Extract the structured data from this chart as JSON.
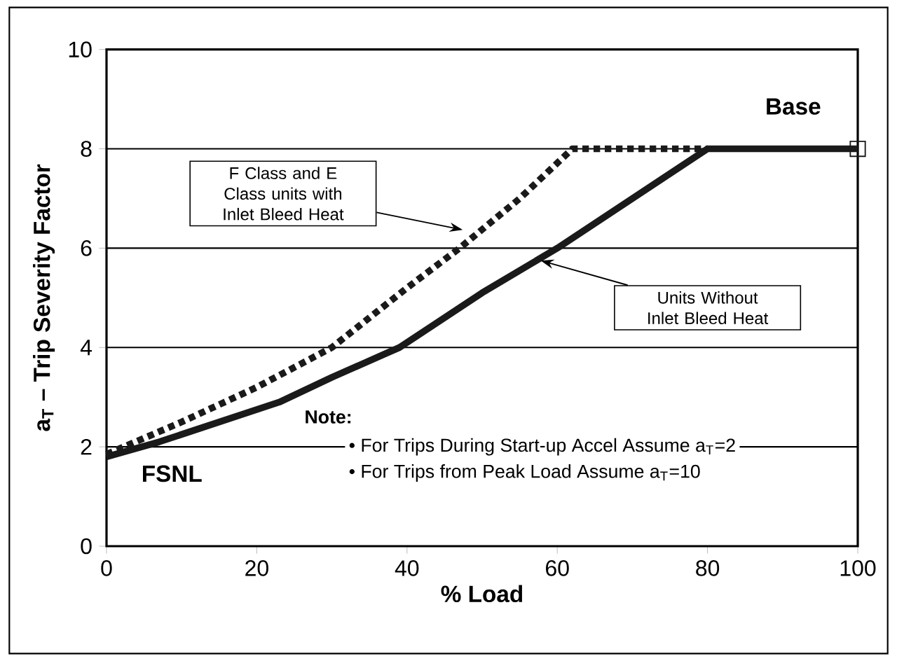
{
  "chart_data": {
    "type": "line",
    "xlabel": "% Load",
    "ylabel": "a$_{T}$ – Trip Severity Factor",
    "xlim": [
      0,
      100
    ],
    "ylim": [
      0,
      10
    ],
    "xticks": [
      0,
      20,
      40,
      60,
      80,
      100
    ],
    "yticks": [
      0,
      2,
      4,
      6,
      8,
      10
    ],
    "grid": "y",
    "series": [
      {
        "color": "#1a1a1a",
        "line_style": "dotted",
        "x": [
          0,
          10,
          20,
          30,
          40,
          47,
          55,
          62,
          80
        ],
        "values": [
          1.85,
          2.5,
          3.2,
          4.0,
          5.2,
          6.0,
          7.0,
          8.0,
          8.0
        ]
      },
      {
        "color": "#1a1a1a",
        "line_style": "solid",
        "x": [
          0,
          7,
          23,
          30,
          39,
          50,
          60,
          70,
          80,
          100
        ],
        "values": [
          1.8,
          2.1,
          2.9,
          3.4,
          4.0,
          5.1,
          6.0,
          7.0,
          8.0,
          8.0
        ]
      },
      {
        "type": "scatter",
        "marker": "square",
        "color": "#1a1a1a",
        "x": [
          100
        ],
        "values": [
          8.0
        ]
      }
    ],
    "annotations": [
      "F Class and E Class units with Inlet Bleed Heat",
      "Units Without Inlet Bleed Heat",
      "Base",
      "FSNL",
      "Note:",
      "• For Trips During Start-up Accel Assume a$_{T}$=2",
      "• For Trips from Peak Load Assume a$_{T}$=10"
    ]
  }
}
